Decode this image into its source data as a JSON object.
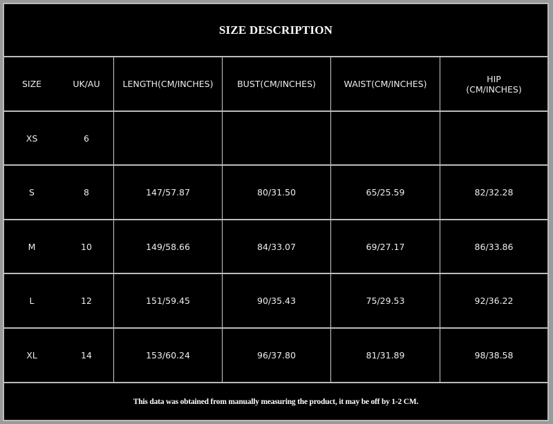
{
  "title": "SIZE DESCRIPTION",
  "headers": [
    "SIZE",
    "UK/AU",
    "LENGTH(CM/INCHES)",
    "BUST(CM/INCHES)",
    "WAIST(CM/INCHES)",
    "HIP\n(CM/INCHES)"
  ],
  "rows": [
    [
      "XS",
      "6",
      "",
      "",
      "",
      ""
    ],
    [
      "S",
      "8",
      "147/57.87",
      "80/31.50",
      "65/25.59",
      "82/32.28"
    ],
    [
      "M",
      "10",
      "149/58.66",
      "84/33.07",
      "69/27.17",
      "86/33.86"
    ],
    [
      "L",
      "12",
      "151/59.45",
      "90/35.43",
      "75/29.53",
      "92/36.22"
    ],
    [
      "XL",
      "14",
      "153/60.24",
      "96/37.80",
      "81/31.89",
      "98/38.58"
    ]
  ],
  "footer": "This data was obtained from manually measuring the product, it may be off by 1-2 CM."
}
